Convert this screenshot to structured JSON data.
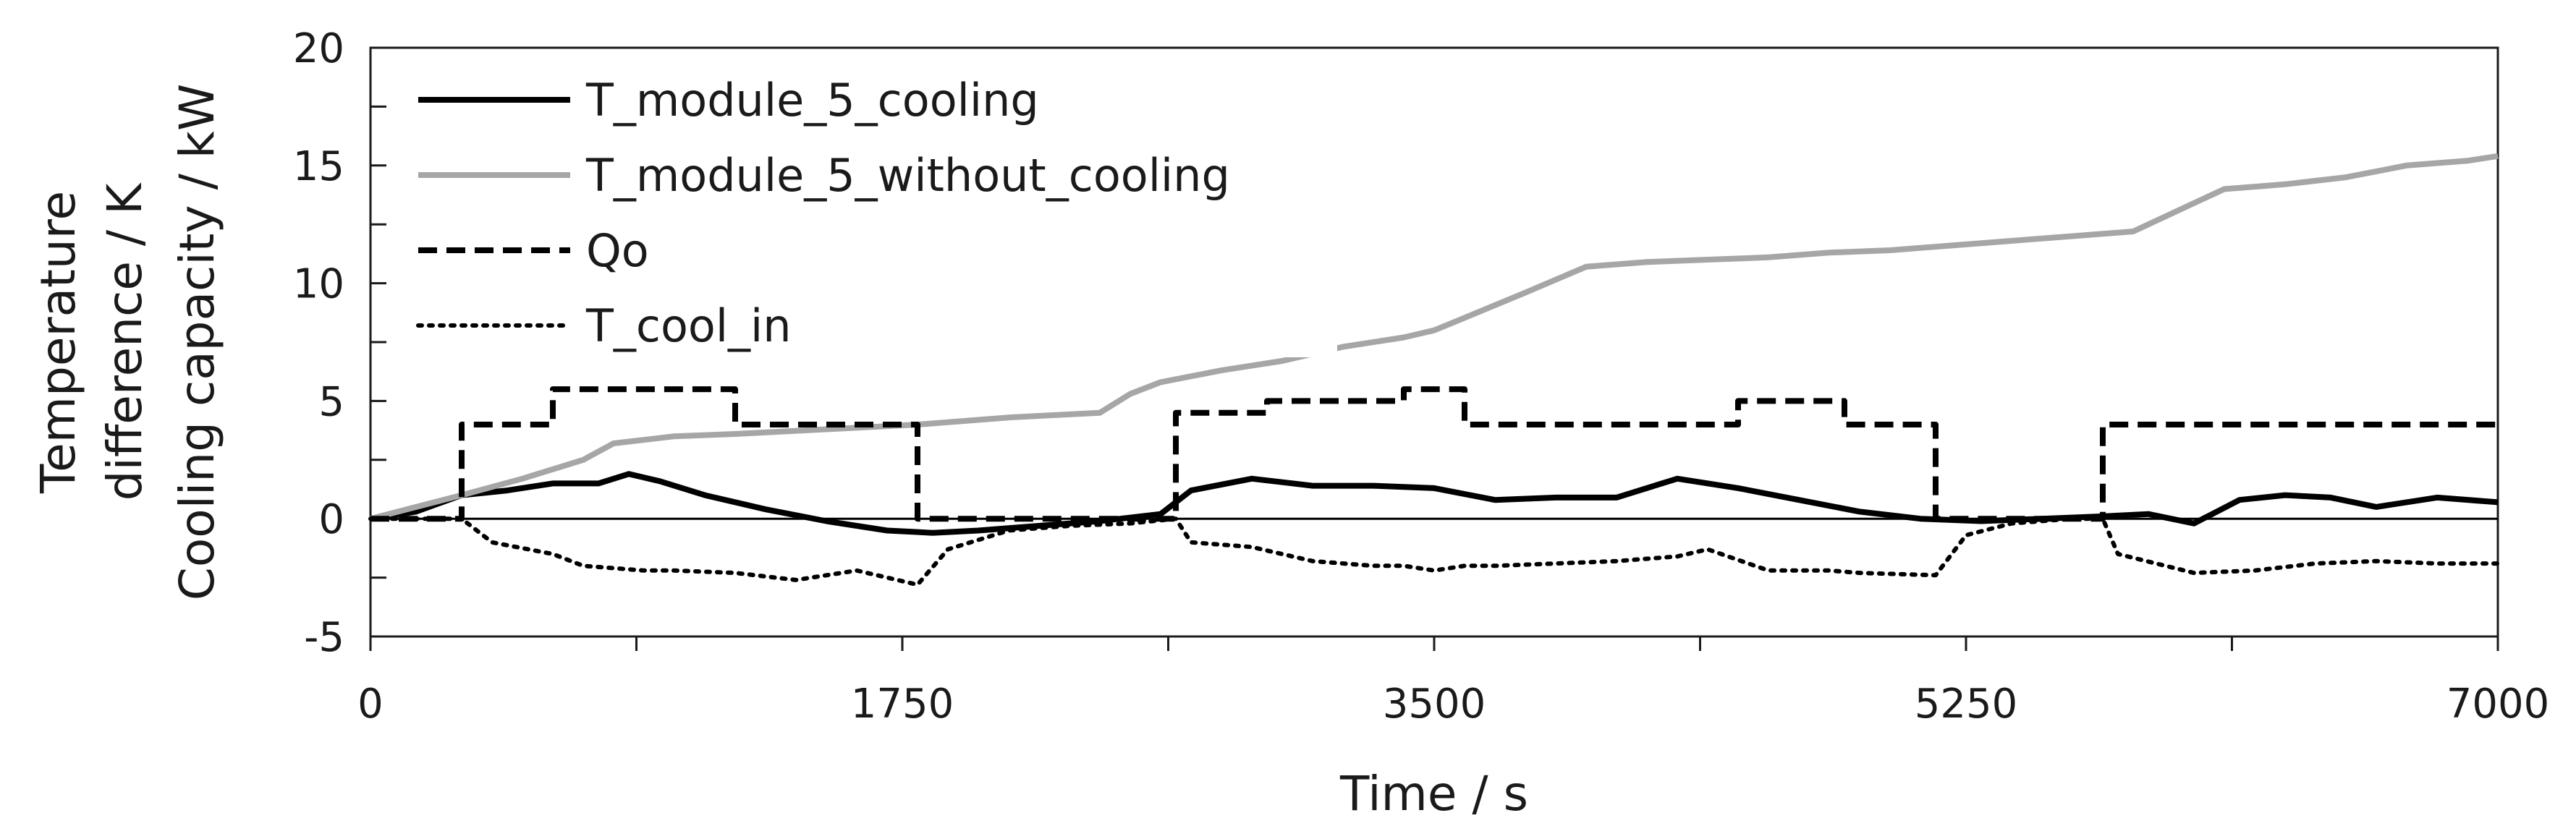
{
  "chart_data": {
    "type": "line",
    "title": "",
    "xlabel": "Time / s",
    "ylabel_lines": [
      "Temperature",
      "difference / K",
      "Cooling capacity / kW"
    ],
    "xlim": [
      0,
      7000
    ],
    "ylim": [
      -5,
      20
    ],
    "x_ticks": [
      0,
      1750,
      3500,
      5250,
      7000
    ],
    "x_minor_ticks": [
      0,
      875,
      1750,
      2625,
      3500,
      4375,
      5250,
      6125,
      7000
    ],
    "y_ticks": [
      -5,
      0,
      5,
      10,
      15,
      20
    ],
    "y_minor_ticks": [
      -2.5,
      2.5,
      7.5,
      12.5,
      17.5
    ],
    "grid": false,
    "zero_line": true,
    "legend_position": "top-left",
    "series": [
      {
        "name": "T_module_5_cooling",
        "color": "#000000",
        "style": "solid",
        "x": [
          0,
          150,
          300,
          450,
          600,
          750,
          850,
          950,
          1100,
          1300,
          1500,
          1700,
          1850,
          2000,
          2200,
          2400,
          2600,
          2700,
          2900,
          3100,
          3300,
          3500,
          3700,
          3900,
          4100,
          4300,
          4500,
          4700,
          4900,
          5100,
          5300,
          5500,
          5700,
          5850,
          6000,
          6150,
          6300,
          6450,
          6600,
          6800,
          7000
        ],
        "y": [
          0,
          0.3,
          1.0,
          1.2,
          1.5,
          1.5,
          1.9,
          1.6,
          1.0,
          0.4,
          -0.1,
          -0.5,
          -0.6,
          -0.5,
          -0.3,
          -0.1,
          0.2,
          1.2,
          1.7,
          1.4,
          1.4,
          1.3,
          0.8,
          0.9,
          0.9,
          1.7,
          1.3,
          0.8,
          0.3,
          0.0,
          -0.1,
          0.0,
          0.1,
          0.2,
          -0.2,
          0.8,
          1.0,
          0.9,
          0.5,
          0.9,
          0.7
        ]
      },
      {
        "name": "T_module_5_without_cooling",
        "color": "#a6a6a6",
        "style": "solid",
        "x": [
          0,
          300,
          500,
          700,
          800,
          1000,
          1200,
          1500,
          1800,
          2100,
          2400,
          2500,
          2600,
          2800,
          3000,
          3200,
          3400,
          3500,
          3650,
          3800,
          4000,
          4200,
          4400,
          4600,
          4800,
          5000,
          5200,
          5400,
          5600,
          5800,
          6000,
          6100,
          6200,
          6300,
          6500,
          6700,
          6900,
          7000
        ],
        "y": [
          0,
          1.0,
          1.7,
          2.5,
          3.2,
          3.5,
          3.6,
          3.8,
          4.0,
          4.3,
          4.5,
          5.3,
          5.8,
          6.3,
          6.7,
          7.3,
          7.7,
          8.0,
          8.8,
          9.6,
          10.7,
          10.9,
          11.0,
          11.1,
          11.3,
          11.4,
          11.6,
          11.8,
          12.0,
          12.2,
          13.4,
          14.0,
          14.1,
          14.2,
          14.5,
          15.0,
          15.2,
          15.4
        ]
      },
      {
        "name": "Qo",
        "color": "#000000",
        "style": "dashed",
        "x": [
          0,
          300,
          300,
          600,
          600,
          1200,
          1200,
          1800,
          1800,
          2650,
          2650,
          2950,
          2950,
          3400,
          3400,
          3600,
          3600,
          4500,
          4500,
          4850,
          4850,
          5150,
          5150,
          5700,
          5700,
          7000
        ],
        "y": [
          0,
          0,
          4,
          4,
          5.5,
          5.5,
          4,
          4,
          0,
          0,
          4.5,
          4.5,
          5,
          5,
          5.5,
          5.5,
          4,
          4,
          5,
          5,
          4,
          4,
          0,
          0,
          4,
          4
        ]
      },
      {
        "name": "T_cool_in",
        "color": "#000000",
        "style": "dotted",
        "x": [
          0,
          300,
          400,
          600,
          700,
          900,
          1000,
          1200,
          1400,
          1600,
          1800,
          1900,
          2100,
          2300,
          2500,
          2650,
          2700,
          2900,
          3100,
          3300,
          3400,
          3500,
          3600,
          3700,
          3900,
          4100,
          4300,
          4400,
          4600,
          4800,
          4900,
          5150,
          5250,
          5400,
          5600,
          5700,
          5750,
          6000,
          6200,
          6400,
          6600,
          6800,
          7000
        ],
        "y": [
          0,
          0,
          -1.0,
          -1.5,
          -2.0,
          -2.2,
          -2.2,
          -2.3,
          -2.6,
          -2.2,
          -2.8,
          -1.3,
          -0.5,
          -0.3,
          -0.2,
          0.0,
          -1.0,
          -1.2,
          -1.8,
          -2.0,
          -2.0,
          -2.2,
          -2.0,
          -2.0,
          -1.9,
          -1.8,
          -1.6,
          -1.3,
          -2.2,
          -2.2,
          -2.3,
          -2.4,
          -0.7,
          -0.2,
          0.0,
          0.0,
          -1.5,
          -2.3,
          -2.2,
          -1.9,
          -1.8,
          -1.9,
          -1.9
        ]
      }
    ]
  }
}
